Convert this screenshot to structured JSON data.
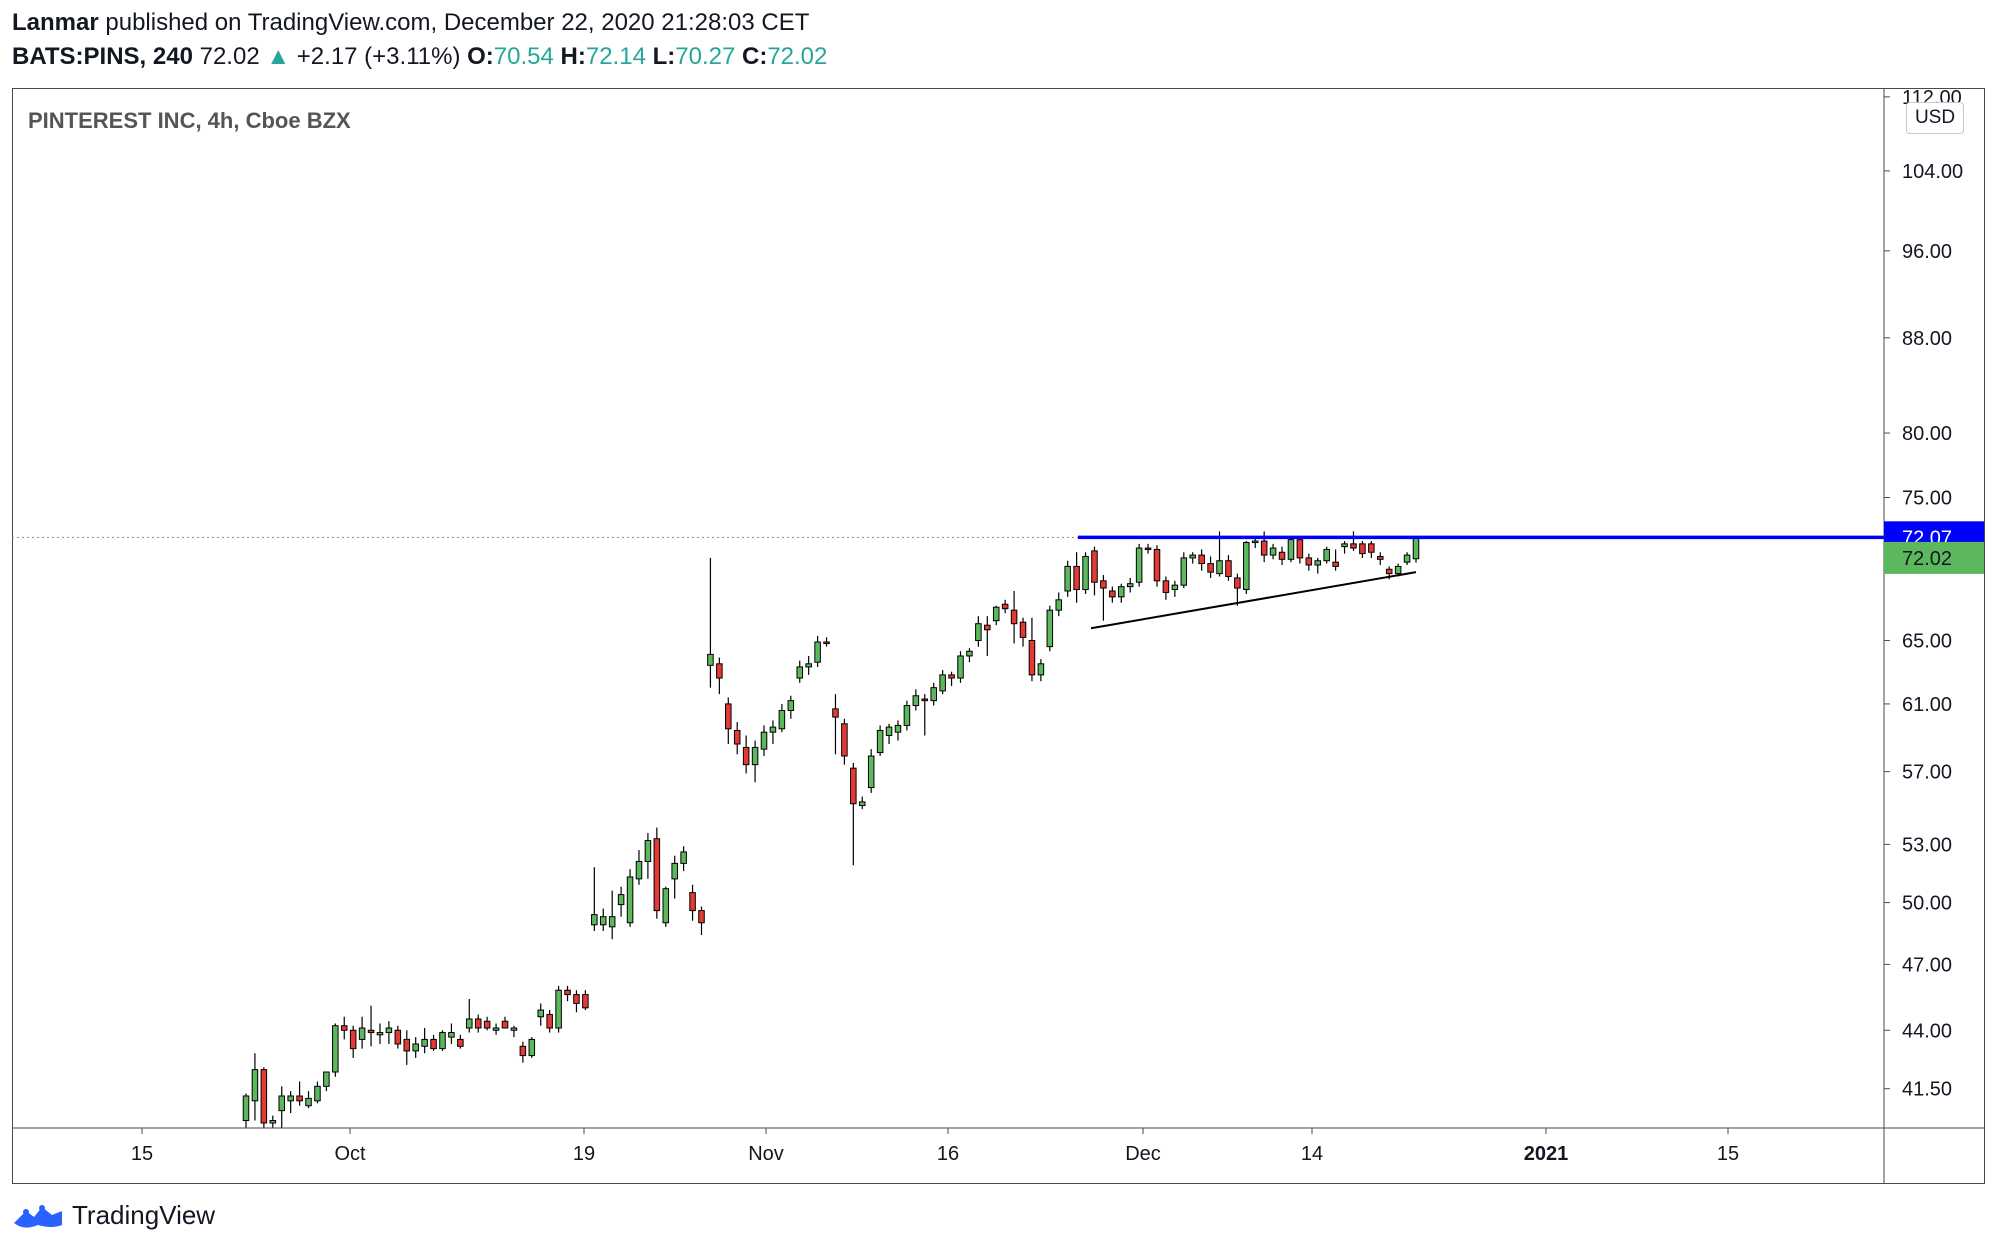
{
  "header": {
    "author": "Lanmar",
    "published_text": "published on TradingView.com, December 22, 2020 21:28:03 CET",
    "symbol": "BATS:PINS, 240",
    "last_price": "72.02",
    "change_arrow": "▲",
    "change": "+2.17 (+3.11%)",
    "o_label": "O:",
    "o_value": "70.54",
    "h_label": "H:",
    "h_value": "72.14",
    "l_label": "L:",
    "l_value": "70.27",
    "c_label": "C:",
    "c_value": "72.02"
  },
  "colors": {
    "up": "#5cb85c",
    "down": "#e53935",
    "wick": "#000000",
    "resistance": "#0000ff",
    "support": "#000000",
    "green_text": "#26a69a",
    "price_label_green": "#5cb85c",
    "price_label_blue": "#0000ff"
  },
  "chart_data": {
    "type": "candlestick",
    "title": "PINTEREST INC, 4h, Cboe BZX",
    "currency_button": "USD",
    "y_ticks": [
      "112.00",
      "104.00",
      "96.00",
      "88.00",
      "80.00",
      "75.00",
      "65.00",
      "61.00",
      "57.00",
      "53.00",
      "50.00",
      "47.00",
      "44.00",
      "41.50"
    ],
    "ylim": [
      39.9,
      113
    ],
    "y_scale": "log",
    "x_tick_labels": [
      "15",
      "Oct",
      "19",
      "Nov",
      "16",
      "Dec",
      "14",
      "2021",
      "15"
    ],
    "x_tick_bold": [
      false,
      false,
      false,
      false,
      false,
      false,
      false,
      true,
      false
    ],
    "x_tick_dates": [
      "2020-09-15",
      "2020-10-01",
      "2020-10-19",
      "2020-11-02",
      "2020-11-16",
      "2020-12-01",
      "2020-12-14",
      "2021-01-01",
      "2021-01-15"
    ],
    "resistance_level": 72.07,
    "resistance_from_date": "2020-11-26",
    "support_line_points": [
      {
        "date": "2020-11-27",
        "value": 65.8
      },
      {
        "date": "2020-12-22",
        "value": 69.6
      }
    ],
    "price_labels": [
      {
        "value": "72.07",
        "color": "blue"
      },
      {
        "value": "72.02",
        "color": "green"
      }
    ],
    "last_price_dotted": 72.07,
    "candles": [
      {
        "date": "2020-09-23",
        "o": 40.2,
        "h": 41.3,
        "l": 39.9,
        "c": 41.2
      },
      {
        "date": "2020-09-23",
        "o": 41.0,
        "h": 43.0,
        "l": 40.2,
        "c": 42.3
      },
      {
        "date": "2020-09-24",
        "o": 42.3,
        "h": 42.4,
        "l": 39.9,
        "c": 40.1
      },
      {
        "date": "2020-09-28",
        "o": 40.1,
        "h": 40.4,
        "l": 39.9,
        "c": 40.2
      },
      {
        "date": "2020-09-29",
        "o": 40.6,
        "h": 41.6,
        "l": 39.9,
        "c": 41.2
      },
      {
        "date": "2020-09-29",
        "o": 41.0,
        "h": 41.4,
        "l": 40.5,
        "c": 41.2
      },
      {
        "date": "2020-09-30",
        "o": 41.2,
        "h": 41.8,
        "l": 40.8,
        "c": 41.0
      },
      {
        "date": "2020-09-30",
        "o": 40.8,
        "h": 41.4,
        "l": 40.7,
        "c": 41.1
      },
      {
        "date": "2020-10-01",
        "o": 41.0,
        "h": 41.8,
        "l": 40.9,
        "c": 41.6
      },
      {
        "date": "2020-10-01",
        "o": 41.6,
        "h": 42.2,
        "l": 41.4,
        "c": 42.2
      },
      {
        "date": "2020-10-02",
        "o": 42.2,
        "h": 44.3,
        "l": 42.0,
        "c": 44.2
      },
      {
        "date": "2020-10-02",
        "o": 44.2,
        "h": 44.6,
        "l": 43.6,
        "c": 44.0
      },
      {
        "date": "2020-10-05",
        "o": 44.0,
        "h": 44.2,
        "l": 42.8,
        "c": 43.2
      },
      {
        "date": "2020-10-05",
        "o": 43.6,
        "h": 44.6,
        "l": 43.2,
        "c": 44.1
      },
      {
        "date": "2020-10-06",
        "o": 44.0,
        "h": 45.1,
        "l": 43.3,
        "c": 43.9
      },
      {
        "date": "2020-10-06",
        "o": 43.8,
        "h": 44.3,
        "l": 43.4,
        "c": 43.9
      },
      {
        "date": "2020-10-07",
        "o": 43.9,
        "h": 44.4,
        "l": 43.4,
        "c": 44.1
      },
      {
        "date": "2020-10-07",
        "o": 44.0,
        "h": 44.2,
        "l": 43.2,
        "c": 43.4
      },
      {
        "date": "2020-10-08",
        "o": 43.6,
        "h": 44.0,
        "l": 42.5,
        "c": 43.1
      },
      {
        "date": "2020-10-08",
        "o": 43.1,
        "h": 43.7,
        "l": 42.8,
        "c": 43.4
      },
      {
        "date": "2020-10-09",
        "o": 43.3,
        "h": 44.1,
        "l": 43.0,
        "c": 43.6
      },
      {
        "date": "2020-10-09",
        "o": 43.6,
        "h": 43.8,
        "l": 43.1,
        "c": 43.2
      },
      {
        "date": "2020-10-12",
        "o": 43.2,
        "h": 44.0,
        "l": 43.1,
        "c": 43.9
      },
      {
        "date": "2020-10-12",
        "o": 43.7,
        "h": 44.3,
        "l": 43.4,
        "c": 43.9
      },
      {
        "date": "2020-10-13",
        "o": 43.6,
        "h": 43.8,
        "l": 43.2,
        "c": 43.3
      },
      {
        "date": "2020-10-14",
        "o": 44.1,
        "h": 45.4,
        "l": 43.9,
        "c": 44.5
      },
      {
        "date": "2020-10-14",
        "o": 44.5,
        "h": 44.7,
        "l": 43.9,
        "c": 44.1
      },
      {
        "date": "2020-10-15",
        "o": 44.4,
        "h": 44.6,
        "l": 44.0,
        "c": 44.1
      },
      {
        "date": "2020-10-15",
        "o": 44.0,
        "h": 44.3,
        "l": 43.8,
        "c": 44.1
      },
      {
        "date": "2020-10-16",
        "o": 44.4,
        "h": 44.6,
        "l": 44.1,
        "c": 44.1
      },
      {
        "date": "2020-10-16",
        "o": 44.0,
        "h": 44.2,
        "l": 43.7,
        "c": 44.1
      },
      {
        "date": "2020-10-19",
        "o": 43.3,
        "h": 43.5,
        "l": 42.6,
        "c": 42.9
      },
      {
        "date": "2020-10-19",
        "o": 42.9,
        "h": 43.7,
        "l": 42.8,
        "c": 43.6
      },
      {
        "date": "2020-10-20",
        "o": 44.6,
        "h": 45.2,
        "l": 44.2,
        "c": 44.9
      },
      {
        "date": "2020-10-20",
        "o": 44.7,
        "h": 44.9,
        "l": 43.9,
        "c": 44.1
      },
      {
        "date": "2020-10-21",
        "o": 44.1,
        "h": 46.0,
        "l": 43.9,
        "c": 45.8
      },
      {
        "date": "2020-10-21",
        "o": 45.8,
        "h": 46.0,
        "l": 45.3,
        "c": 45.6
      },
      {
        "date": "2020-10-22",
        "o": 45.6,
        "h": 45.8,
        "l": 44.8,
        "c": 45.2
      },
      {
        "date": "2020-10-22",
        "o": 45.6,
        "h": 45.8,
        "l": 44.9,
        "c": 45.0
      },
      {
        "date": "2020-10-23",
        "o": 48.9,
        "h": 51.8,
        "l": 48.6,
        "c": 49.4
      },
      {
        "date": "2020-10-23",
        "o": 48.9,
        "h": 49.7,
        "l": 48.6,
        "c": 49.3
      },
      {
        "date": "2020-10-26",
        "o": 48.8,
        "h": 50.6,
        "l": 48.2,
        "c": 49.3
      },
      {
        "date": "2020-10-26",
        "o": 49.9,
        "h": 50.8,
        "l": 49.3,
        "c": 50.4
      },
      {
        "date": "2020-10-27",
        "o": 49.0,
        "h": 51.7,
        "l": 48.8,
        "c": 51.3
      },
      {
        "date": "2020-10-27",
        "o": 51.2,
        "h": 52.7,
        "l": 50.9,
        "c": 52.1
      },
      {
        "date": "2020-10-28",
        "o": 52.1,
        "h": 53.6,
        "l": 51.2,
        "c": 53.2
      },
      {
        "date": "2020-10-28",
        "o": 53.3,
        "h": 53.9,
        "l": 49.2,
        "c": 49.6
      },
      {
        "date": "2020-10-29",
        "o": 49.0,
        "h": 50.8,
        "l": 48.8,
        "c": 50.7
      },
      {
        "date": "2020-10-29",
        "o": 51.2,
        "h": 52.4,
        "l": 50.2,
        "c": 52.0
      },
      {
        "date": "2020-10-30",
        "o": 52.0,
        "h": 52.9,
        "l": 51.6,
        "c": 52.6
      },
      {
        "date": "2020-10-30",
        "o": 50.5,
        "h": 50.9,
        "l": 49.1,
        "c": 49.6
      },
      {
        "date": "2020-11-02",
        "o": 49.6,
        "h": 49.8,
        "l": 48.4,
        "c": 49.0
      },
      {
        "date": "2020-11-03",
        "o": 63.4,
        "h": 70.6,
        "l": 62.0,
        "c": 64.1
      },
      {
        "date": "2020-11-03",
        "o": 63.5,
        "h": 63.9,
        "l": 61.6,
        "c": 62.6
      },
      {
        "date": "2020-11-04",
        "o": 61.0,
        "h": 61.4,
        "l": 58.6,
        "c": 59.5
      },
      {
        "date": "2020-11-04",
        "o": 59.4,
        "h": 59.9,
        "l": 58.0,
        "c": 58.6
      },
      {
        "date": "2020-11-05",
        "o": 58.4,
        "h": 59.1,
        "l": 56.9,
        "c": 57.4
      },
      {
        "date": "2020-11-05",
        "o": 57.4,
        "h": 58.8,
        "l": 56.4,
        "c": 58.4
      },
      {
        "date": "2020-11-06",
        "o": 58.3,
        "h": 59.7,
        "l": 57.9,
        "c": 59.3
      },
      {
        "date": "2020-11-06",
        "o": 59.3,
        "h": 60.0,
        "l": 58.6,
        "c": 59.6
      },
      {
        "date": "2020-11-09",
        "o": 59.5,
        "h": 61.0,
        "l": 59.3,
        "c": 60.6
      },
      {
        "date": "2020-11-09",
        "o": 60.6,
        "h": 61.5,
        "l": 60.1,
        "c": 61.2
      },
      {
        "date": "2020-11-10",
        "o": 62.6,
        "h": 63.7,
        "l": 62.3,
        "c": 63.3
      },
      {
        "date": "2020-11-10",
        "o": 63.3,
        "h": 64.0,
        "l": 62.8,
        "c": 63.5
      },
      {
        "date": "2020-11-11",
        "o": 63.6,
        "h": 65.3,
        "l": 63.3,
        "c": 64.9
      },
      {
        "date": "2020-11-11",
        "o": 64.9,
        "h": 65.2,
        "l": 64.6,
        "c": 64.8
      },
      {
        "date": "2020-11-12",
        "o": 60.7,
        "h": 61.6,
        "l": 58.0,
        "c": 60.2
      },
      {
        "date": "2020-11-12",
        "o": 59.8,
        "h": 60.1,
        "l": 57.4,
        "c": 57.9
      },
      {
        "date": "2020-11-13",
        "o": 57.2,
        "h": 57.5,
        "l": 51.9,
        "c": 55.2
      },
      {
        "date": "2020-11-13",
        "o": 55.1,
        "h": 55.6,
        "l": 54.9,
        "c": 55.3
      },
      {
        "date": "2020-11-16",
        "o": 56.1,
        "h": 58.3,
        "l": 55.8,
        "c": 57.9
      },
      {
        "date": "2020-11-16",
        "o": 58.1,
        "h": 59.7,
        "l": 57.9,
        "c": 59.4
      },
      {
        "date": "2020-11-17",
        "o": 59.1,
        "h": 59.8,
        "l": 58.6,
        "c": 59.6
      },
      {
        "date": "2020-11-17",
        "o": 59.3,
        "h": 60.0,
        "l": 58.8,
        "c": 59.7
      },
      {
        "date": "2020-11-18",
        "o": 59.7,
        "h": 61.2,
        "l": 59.4,
        "c": 60.9
      },
      {
        "date": "2020-11-18",
        "o": 60.9,
        "h": 61.9,
        "l": 60.6,
        "c": 61.5
      },
      {
        "date": "2020-11-19",
        "o": 61.3,
        "h": 61.6,
        "l": 59.1,
        "c": 61.2
      },
      {
        "date": "2020-11-19",
        "o": 61.2,
        "h": 62.3,
        "l": 60.9,
        "c": 62.0
      },
      {
        "date": "2020-11-20",
        "o": 61.8,
        "h": 63.1,
        "l": 61.6,
        "c": 62.8
      },
      {
        "date": "2020-11-20",
        "o": 62.8,
        "h": 63.0,
        "l": 62.1,
        "c": 62.6
      },
      {
        "date": "2020-11-23",
        "o": 62.6,
        "h": 64.3,
        "l": 62.3,
        "c": 64.0
      },
      {
        "date": "2020-11-23",
        "o": 64.0,
        "h": 64.5,
        "l": 63.6,
        "c": 64.3
      },
      {
        "date": "2020-11-24",
        "o": 65.0,
        "h": 66.6,
        "l": 64.6,
        "c": 66.1
      },
      {
        "date": "2020-11-24",
        "o": 66.0,
        "h": 66.6,
        "l": 64.0,
        "c": 65.7
      },
      {
        "date": "2020-11-25",
        "o": 66.3,
        "h": 67.3,
        "l": 66.0,
        "c": 67.2
      },
      {
        "date": "2020-11-25",
        "o": 67.4,
        "h": 67.7,
        "l": 66.8,
        "c": 67.1
      },
      {
        "date": "2020-11-26",
        "o": 67.0,
        "h": 68.3,
        "l": 64.8,
        "c": 66.1
      },
      {
        "date": "2020-11-26",
        "o": 66.2,
        "h": 66.5,
        "l": 64.6,
        "c": 65.2
      },
      {
        "date": "2020-11-27",
        "o": 65.0,
        "h": 66.5,
        "l": 62.4,
        "c": 62.8
      },
      {
        "date": "2020-11-27",
        "o": 62.8,
        "h": 63.8,
        "l": 62.4,
        "c": 63.5
      },
      {
        "date": "2020-11-30",
        "o": 64.6,
        "h": 67.3,
        "l": 64.3,
        "c": 67.0
      },
      {
        "date": "2020-11-30",
        "o": 67.0,
        "h": 68.2,
        "l": 66.6,
        "c": 67.7
      },
      {
        "date": "2020-12-01",
        "o": 68.3,
        "h": 70.4,
        "l": 67.9,
        "c": 70.0
      },
      {
        "date": "2020-12-01",
        "o": 70.0,
        "h": 71.0,
        "l": 67.5,
        "c": 68.4
      },
      {
        "date": "2020-12-02",
        "o": 68.4,
        "h": 71.0,
        "l": 68.1,
        "c": 70.7
      },
      {
        "date": "2020-12-02",
        "o": 71.1,
        "h": 71.4,
        "l": 68.0,
        "c": 68.9
      },
      {
        "date": "2020-12-03",
        "o": 69.0,
        "h": 69.4,
        "l": 66.3,
        "c": 68.5
      },
      {
        "date": "2020-12-03",
        "o": 68.3,
        "h": 68.6,
        "l": 67.5,
        "c": 67.9
      },
      {
        "date": "2020-12-04",
        "o": 67.9,
        "h": 68.8,
        "l": 67.5,
        "c": 68.6
      },
      {
        "date": "2020-12-04",
        "o": 68.6,
        "h": 69.2,
        "l": 68.2,
        "c": 68.8
      },
      {
        "date": "2020-12-07",
        "o": 68.9,
        "h": 71.6,
        "l": 68.6,
        "c": 71.3
      },
      {
        "date": "2020-12-07",
        "o": 71.3,
        "h": 71.6,
        "l": 70.9,
        "c": 71.2
      },
      {
        "date": "2020-12-08",
        "o": 71.2,
        "h": 71.5,
        "l": 68.6,
        "c": 69.0
      },
      {
        "date": "2020-12-08",
        "o": 69.0,
        "h": 69.3,
        "l": 67.7,
        "c": 68.2
      },
      {
        "date": "2020-12-09",
        "o": 68.4,
        "h": 69.0,
        "l": 67.9,
        "c": 68.7
      },
      {
        "date": "2020-12-09",
        "o": 68.7,
        "h": 71.0,
        "l": 68.5,
        "c": 70.6
      },
      {
        "date": "2020-12-10",
        "o": 70.6,
        "h": 71.0,
        "l": 70.2,
        "c": 70.8
      },
      {
        "date": "2020-12-10",
        "o": 70.8,
        "h": 71.2,
        "l": 69.7,
        "c": 70.2
      },
      {
        "date": "2020-12-11",
        "o": 70.2,
        "h": 70.7,
        "l": 69.2,
        "c": 69.6
      },
      {
        "date": "2020-12-11",
        "o": 69.5,
        "h": 72.5,
        "l": 69.3,
        "c": 70.4
      },
      {
        "date": "2020-12-14",
        "o": 70.4,
        "h": 70.8,
        "l": 69.0,
        "c": 69.3
      },
      {
        "date": "2020-12-14",
        "o": 69.2,
        "h": 69.5,
        "l": 67.3,
        "c": 68.5
      },
      {
        "date": "2020-12-15",
        "o": 68.4,
        "h": 71.8,
        "l": 68.1,
        "c": 71.7
      },
      {
        "date": "2020-12-15",
        "o": 71.7,
        "h": 72.0,
        "l": 71.3,
        "c": 71.8
      },
      {
        "date": "2020-12-16",
        "o": 71.8,
        "h": 72.5,
        "l": 70.3,
        "c": 70.8
      },
      {
        "date": "2020-12-16",
        "o": 70.8,
        "h": 71.6,
        "l": 70.5,
        "c": 71.3
      },
      {
        "date": "2020-12-16",
        "o": 71.0,
        "h": 71.4,
        "l": 70.1,
        "c": 70.5
      },
      {
        "date": "2020-12-17",
        "o": 70.5,
        "h": 72.1,
        "l": 70.3,
        "c": 71.9
      },
      {
        "date": "2020-12-17",
        "o": 71.9,
        "h": 72.0,
        "l": 70.2,
        "c": 70.6
      },
      {
        "date": "2020-12-18",
        "o": 70.6,
        "h": 70.9,
        "l": 69.7,
        "c": 70.1
      },
      {
        "date": "2020-12-18",
        "o": 70.1,
        "h": 70.6,
        "l": 69.5,
        "c": 70.4
      },
      {
        "date": "2020-12-19",
        "o": 70.4,
        "h": 71.4,
        "l": 70.2,
        "c": 71.2
      },
      {
        "date": "2020-12-19",
        "o": 70.3,
        "h": 71.2,
        "l": 69.7,
        "c": 70.0
      },
      {
        "date": "2020-12-21",
        "o": 71.4,
        "h": 71.8,
        "l": 70.9,
        "c": 71.6
      },
      {
        "date": "2020-12-21",
        "o": 71.6,
        "h": 72.5,
        "l": 71.1,
        "c": 71.3
      },
      {
        "date": "2020-12-21",
        "o": 71.6,
        "h": 71.8,
        "l": 70.6,
        "c": 70.9
      },
      {
        "date": "2020-12-21",
        "o": 71.6,
        "h": 71.8,
        "l": 70.6,
        "c": 71.0
      },
      {
        "date": "2020-12-22",
        "o": 70.7,
        "h": 71.0,
        "l": 70.1,
        "c": 70.5
      },
      {
        "date": "2020-12-22",
        "o": 69.8,
        "h": 70.0,
        "l": 69.1,
        "c": 69.5
      },
      {
        "date": "2020-12-22",
        "o": 69.5,
        "h": 70.2,
        "l": 69.3,
        "c": 70.0
      },
      {
        "date": "2020-12-22",
        "o": 70.3,
        "h": 71.0,
        "l": 70.1,
        "c": 70.8
      },
      {
        "date": "2020-12-22",
        "o": 70.54,
        "h": 72.14,
        "l": 70.27,
        "c": 72.02
      }
    ]
  },
  "footer": {
    "brand": "TradingView"
  }
}
